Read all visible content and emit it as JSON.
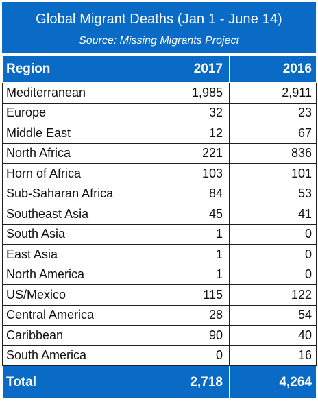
{
  "chart_data": {
    "type": "table",
    "title": "Global Migrant Deaths (Jan 1 - June 14)",
    "subtitle": "Source: Missing Migrants Project",
    "columns": [
      "Region",
      "2017",
      "2016"
    ],
    "rows": [
      {
        "region": "Mediterranean",
        "y2017": "1,985",
        "y2016": "2,911"
      },
      {
        "region": "Europe",
        "y2017": "32",
        "y2016": "23"
      },
      {
        "region": "Middle East",
        "y2017": "12",
        "y2016": "67"
      },
      {
        "region": "North Africa",
        "y2017": "221",
        "y2016": "836"
      },
      {
        "region": "Horn of Africa",
        "y2017": "103",
        "y2016": "101"
      },
      {
        "region": "Sub-Saharan Africa",
        "y2017": "84",
        "y2016": "53"
      },
      {
        "region": "Southeast Asia",
        "y2017": "45",
        "y2016": "41"
      },
      {
        "region": "South Asia",
        "y2017": "1",
        "y2016": "0"
      },
      {
        "region": "East Asia",
        "y2017": "1",
        "y2016": "0"
      },
      {
        "region": "North America",
        "y2017": "1",
        "y2016": "0"
      },
      {
        "region": "US/Mexico",
        "y2017": "115",
        "y2016": "122"
      },
      {
        "region": "Central America",
        "y2017": "28",
        "y2016": "54"
      },
      {
        "region": "Caribbean",
        "y2017": "90",
        "y2016": "40"
      },
      {
        "region": "South America",
        "y2017": "0",
        "y2016": "16"
      }
    ],
    "total": {
      "label": "Total",
      "y2017": "2,718",
      "y2016": "4,264"
    }
  },
  "colors": {
    "header_blue": "#0a6bc6",
    "text": "#111111",
    "background": "#ffffff"
  }
}
